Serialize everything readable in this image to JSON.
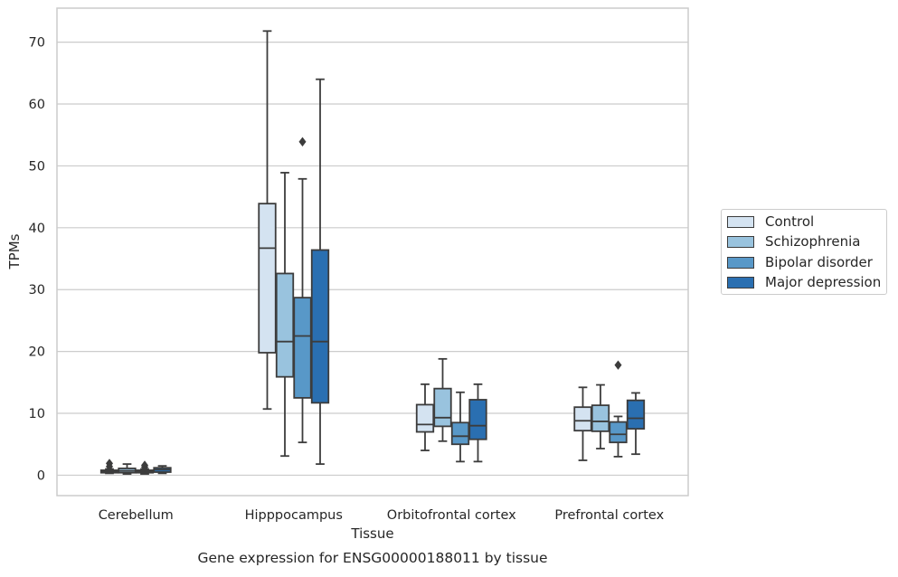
{
  "chart_data": {
    "type": "boxplot",
    "caption": "Gene expression for ENSG00000188011 by tissue",
    "xlabel": "Tissue",
    "ylabel": "TPMs",
    "ylim": [
      -3.3,
      75.5
    ],
    "yticks": [
      0,
      10,
      20,
      30,
      40,
      50,
      60,
      70
    ],
    "grid": "horizontal",
    "legend_position": "right",
    "categories": [
      "Cerebellum",
      "Hipppocampus",
      "Orbitofrontal cortex",
      "Prefrontal cortex"
    ],
    "series": [
      {
        "name": "Control",
        "color": "#d4e3f1",
        "boxes": [
          {
            "whisker_low": 0.3,
            "q1": 0.4,
            "median": 0.6,
            "q3": 0.8,
            "whisker_high": 1.0,
            "outliers": [
              1.4,
              1.9
            ]
          },
          {
            "whisker_low": 10.7,
            "q1": 19.8,
            "median": 36.7,
            "q3": 43.9,
            "whisker_high": 71.8,
            "outliers": []
          },
          {
            "whisker_low": 4.0,
            "q1": 7.0,
            "median": 8.2,
            "q3": 11.4,
            "whisker_high": 14.7,
            "outliers": []
          },
          {
            "whisker_low": 2.4,
            "q1": 7.2,
            "median": 8.8,
            "q3": 11.0,
            "whisker_high": 14.2,
            "outliers": []
          }
        ]
      },
      {
        "name": "Schizophrenia",
        "color": "#99c3de",
        "boxes": [
          {
            "whisker_low": 0.2,
            "q1": 0.4,
            "median": 0.7,
            "q3": 1.1,
            "whisker_high": 1.8,
            "outliers": []
          },
          {
            "whisker_low": 3.1,
            "q1": 15.9,
            "median": 21.6,
            "q3": 32.6,
            "whisker_high": 48.9,
            "outliers": []
          },
          {
            "whisker_low": 5.5,
            "q1": 7.9,
            "median": 9.3,
            "q3": 14.0,
            "whisker_high": 18.8,
            "outliers": []
          },
          {
            "whisker_low": 4.3,
            "q1": 7.1,
            "median": 8.7,
            "q3": 11.3,
            "whisker_high": 14.6,
            "outliers": []
          }
        ]
      },
      {
        "name": "Bipolar disorder",
        "color": "#5898c8",
        "boxes": [
          {
            "whisker_low": 0.2,
            "q1": 0.4,
            "median": 0.6,
            "q3": 0.8,
            "whisker_high": 1.0,
            "outliers": [
              1.3,
              1.6
            ]
          },
          {
            "whisker_low": 5.3,
            "q1": 12.5,
            "median": 22.5,
            "q3": 28.7,
            "whisker_high": 47.9,
            "outliers": [
              53.9
            ]
          },
          {
            "whisker_low": 2.2,
            "q1": 5.0,
            "median": 6.3,
            "q3": 8.5,
            "whisker_high": 13.4,
            "outliers": []
          },
          {
            "whisker_low": 3.0,
            "q1": 5.3,
            "median": 6.6,
            "q3": 8.6,
            "whisker_high": 9.5,
            "outliers": [
              17.8
            ]
          }
        ]
      },
      {
        "name": "Major depression",
        "color": "#2a6fb1",
        "boxes": [
          {
            "whisker_low": 0.3,
            "q1": 0.5,
            "median": 0.9,
            "q3": 1.2,
            "whisker_high": 1.5,
            "outliers": []
          },
          {
            "whisker_low": 1.8,
            "q1": 11.7,
            "median": 21.6,
            "q3": 36.4,
            "whisker_high": 64.0,
            "outliers": []
          },
          {
            "whisker_low": 2.2,
            "q1": 5.8,
            "median": 8.0,
            "q3": 12.2,
            "whisker_high": 14.7,
            "outliers": []
          },
          {
            "whisker_low": 3.4,
            "q1": 7.5,
            "median": 9.2,
            "q3": 12.1,
            "whisker_high": 13.3,
            "outliers": []
          }
        ]
      }
    ]
  }
}
